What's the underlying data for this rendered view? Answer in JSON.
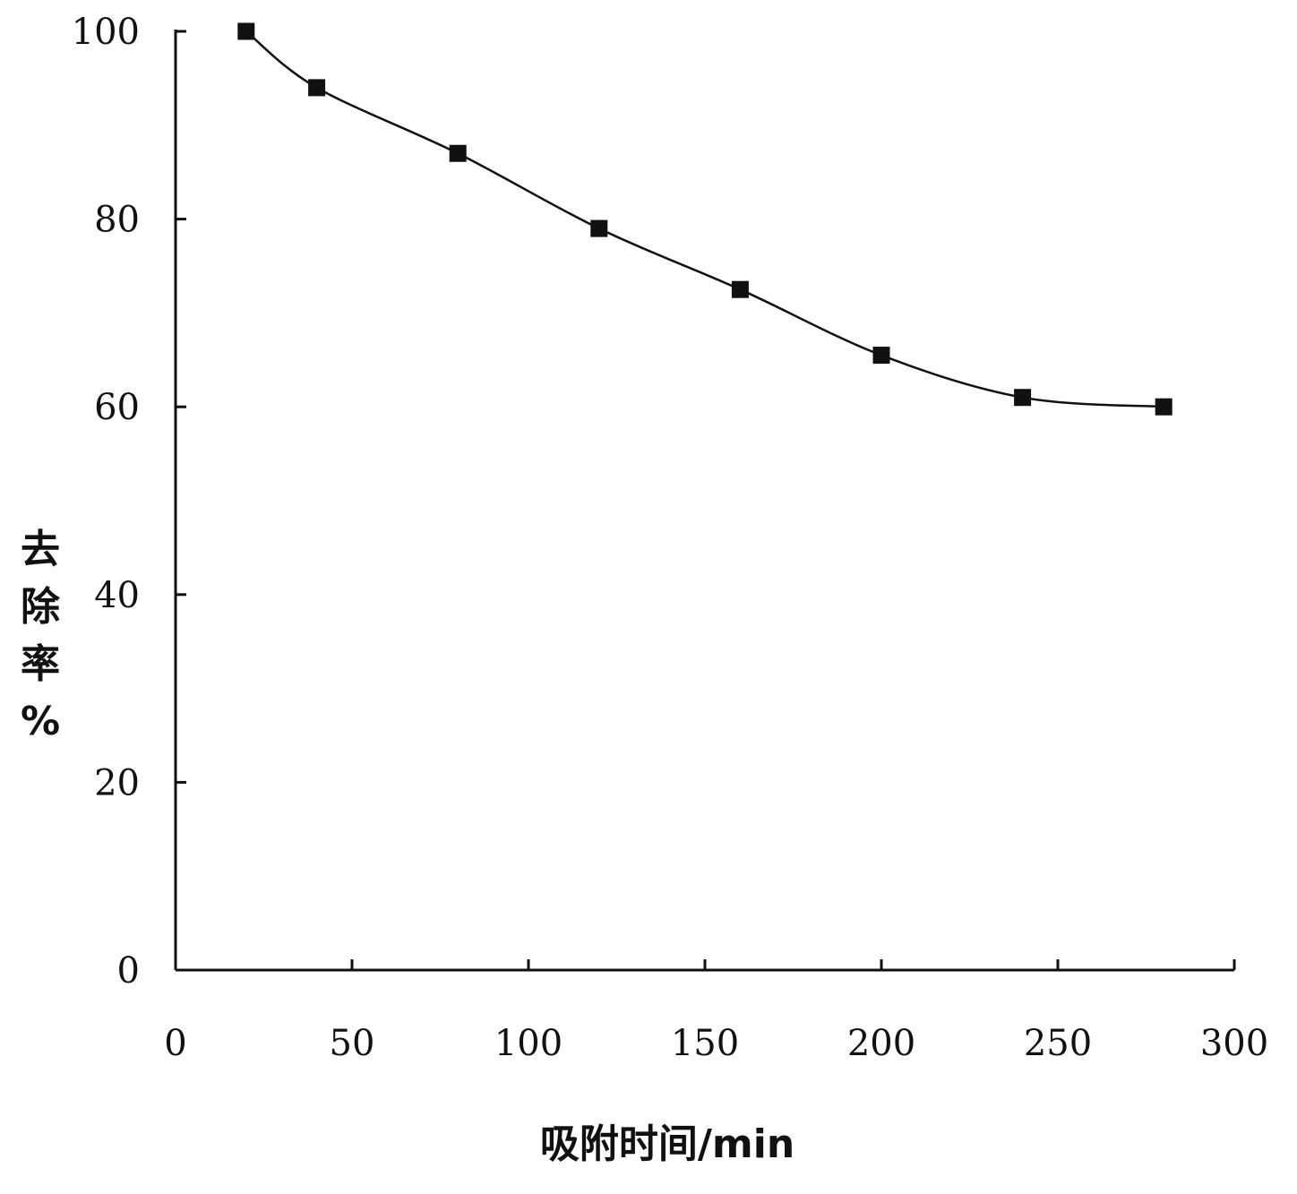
{
  "chart_data": {
    "type": "line",
    "title": "",
    "xlabel": "吸附时间/min",
    "ylabel_chars": [
      "去",
      "除",
      "率",
      "%"
    ],
    "xlim": [
      0,
      300
    ],
    "ylim": [
      0,
      100
    ],
    "x_ticks": [
      0,
      50,
      100,
      150,
      200,
      250,
      300
    ],
    "y_ticks": [
      0,
      20,
      40,
      60,
      80,
      100
    ],
    "grid": false,
    "legend": "none",
    "marker": "square",
    "line_color": "#111111",
    "series": [
      {
        "x": [
          20,
          40,
          80,
          120,
          160,
          200,
          240,
          280
        ],
        "y": [
          100,
          94,
          87,
          79,
          72.5,
          65.5,
          61,
          60
        ]
      }
    ]
  }
}
